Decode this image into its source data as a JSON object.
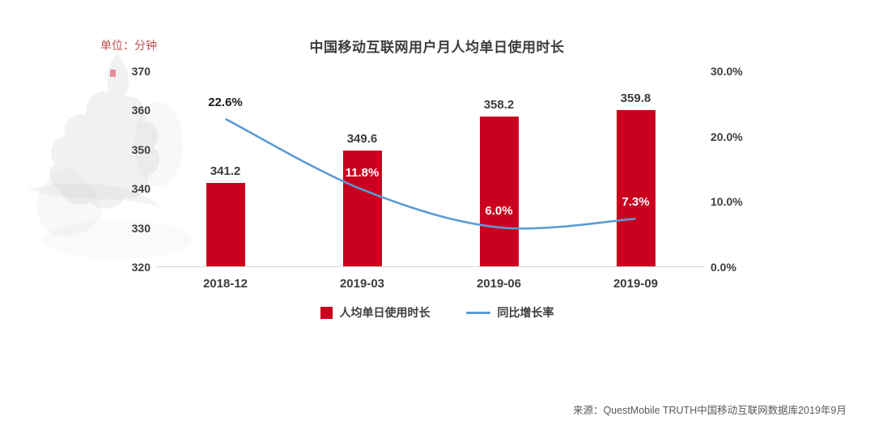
{
  "meta": {
    "title": "中国移动互联网用户月人均单日使用时长",
    "unit_label": "单位：分钟",
    "source": "来源：QuestMobile TRUTH中国移动互联网数据库2019年9月"
  },
  "colors": {
    "bar": "#C9001E",
    "line": "#5B9BD5",
    "unit_label": "#C0504D",
    "axis_text": "#3D3D3D",
    "axis_line": "#D6D6D6",
    "point_label_light": "#FFFFFF",
    "point_label_dark": "#1A1A1A",
    "source_text": "#595959"
  },
  "chart_data": {
    "type": "bar",
    "subtype": "bar+line combo, dual axis",
    "title": "中国移动互联网用户月人均单日使用时长",
    "categories": [
      "2018-12",
      "2019-03",
      "2019-06",
      "2019-09"
    ],
    "series": [
      {
        "name": "人均单日使用时长",
        "chart": "bar",
        "axis": "left",
        "values": [
          341.2,
          349.6,
          358.2,
          359.8
        ],
        "labels": [
          "341.2",
          "349.6",
          "358.2",
          "359.8"
        ]
      },
      {
        "name": "同比增长率",
        "chart": "line",
        "axis": "right",
        "values": [
          22.6,
          11.8,
          6.0,
          7.3
        ],
        "labels": [
          "22.6%",
          "11.8%",
          "6.0%",
          "7.3%"
        ]
      }
    ],
    "left_axis": {
      "label": "单位：分钟",
      "min": 320,
      "max": 370,
      "tick_step": 10,
      "ticks": [
        "370",
        "360",
        "350",
        "340",
        "330",
        "320"
      ]
    },
    "right_axis": {
      "min": 0,
      "max": 30,
      "tick_step": 10,
      "ticks": [
        "30.0%",
        "20.0%",
        "10.0%",
        "0.0%"
      ]
    },
    "legend": [
      {
        "label": "人均单日使用时长",
        "swatch": "bar"
      },
      {
        "label": "同比增长率",
        "swatch": "line"
      }
    ],
    "grid": false,
    "legend_position": "bottom-center"
  }
}
